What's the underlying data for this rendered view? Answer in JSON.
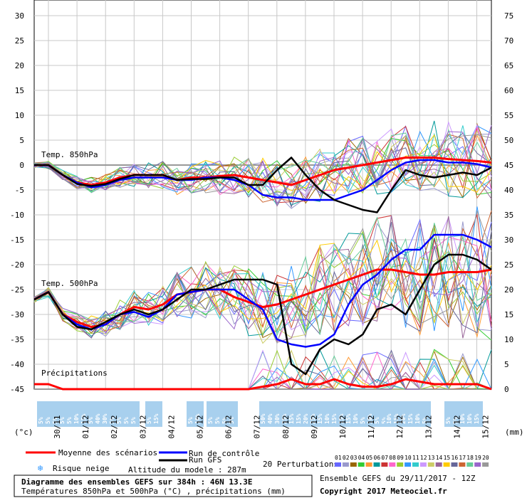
{
  "chart_data": {
    "type": "line",
    "title": "Diagramme des ensembles GEFS sur 384h : 46N 13.3E",
    "subtitle": "Températures 850hPa et 500hPa (°C) , précipitations (mm)",
    "left_axis": {
      "unit_label": "(°c)",
      "ticks": [
        30,
        25,
        20,
        15,
        10,
        5,
        0,
        -5,
        -10,
        -15,
        -20,
        -25,
        -30,
        -35,
        -40,
        -45
      ],
      "range": [
        -45,
        30
      ]
    },
    "right_axis": {
      "unit_label": "(mm)",
      "ticks": [
        75,
        70,
        65,
        60,
        55,
        50,
        45,
        40,
        35,
        30,
        25,
        20,
        15,
        10,
        5,
        0
      ],
      "range": [
        0,
        75
      ]
    },
    "date_ticks": [
      "30/11",
      "01/12",
      "02/12",
      "03/12",
      "04/12",
      "05/12",
      "06/12",
      "07/12",
      "08/12",
      "09/12",
      "10/12",
      "11/12",
      "12/12",
      "13/12",
      "14/12",
      "15/12"
    ],
    "hours": [
      0,
      12,
      24,
      36,
      48,
      60,
      72,
      84,
      96,
      108,
      120,
      132,
      144,
      156,
      168,
      180,
      192,
      204,
      216,
      228,
      240,
      252,
      264,
      276,
      288,
      300,
      312,
      324,
      336,
      348,
      360,
      372,
      384
    ],
    "panel_labels": {
      "t850": "Temp. 850hPa",
      "t500": "Temp. 500hPa",
      "precip": "Précipitations"
    },
    "series": [
      {
        "name": "Moyenne des scénarios",
        "color": "#ff0000",
        "panel": "t850",
        "values": [
          0,
          0,
          -2,
          -3.5,
          -4,
          -3.5,
          -2.5,
          -2,
          -2,
          -2,
          -3,
          -2.5,
          -2.5,
          -2.2,
          -2,
          -2.5,
          -3,
          -3.5,
          -4,
          -3,
          -2,
          -1,
          -0.5,
          0,
          0.5,
          1,
          1.5,
          1.5,
          1.5,
          1.2,
          1,
          0.8,
          0.5
        ]
      },
      {
        "name": "Run de contrôle",
        "color": "#0000ff",
        "panel": "t850",
        "values": [
          0,
          0,
          -2,
          -3.5,
          -4.5,
          -4,
          -3,
          -2.5,
          -2.5,
          -2.5,
          -3,
          -3,
          -2.5,
          -2.5,
          -3,
          -4,
          -6,
          -6.5,
          -6.5,
          -7,
          -7,
          -7,
          -6,
          -5,
          -3,
          -1,
          0.5,
          1,
          1,
          0.5,
          0.5,
          0.2,
          -0.5
        ]
      },
      {
        "name": "Run GFS",
        "color": "#000000",
        "panel": "t850",
        "values": [
          0,
          0,
          -2,
          -3.8,
          -4.2,
          -3.8,
          -2.8,
          -2,
          -2,
          -2,
          -3,
          -2.8,
          -2.8,
          -2.5,
          -2.5,
          -4,
          -4,
          -1,
          1.5,
          -2,
          -5,
          -7,
          -8,
          -9,
          -9.5,
          -5,
          -1,
          -2,
          -2.5,
          -2,
          -1.5,
          -2,
          -0.5
        ]
      },
      {
        "name": "Moyenne des scénarios",
        "color": "#ff0000",
        "panel": "t500",
        "values": [
          -27,
          -25.5,
          -30,
          -31.5,
          -32.5,
          -32,
          -30,
          -28.5,
          -29,
          -28,
          -26,
          -25.5,
          -25,
          -25,
          -26.5,
          -27.5,
          -28.5,
          -28,
          -27,
          -26,
          -25,
          -24,
          -23,
          -22,
          -21,
          -21,
          -21.5,
          -22,
          -22,
          -21.5,
          -21.5,
          -21.5,
          -21
        ]
      },
      {
        "name": "Run de contrôle",
        "color": "#0000ff",
        "panel": "t500",
        "values": [
          -27,
          -25.5,
          -30,
          -32,
          -33,
          -32,
          -30,
          -29.5,
          -30.5,
          -29,
          -26,
          -25.5,
          -25,
          -25,
          -25,
          -27,
          -29,
          -35,
          -36,
          -36.5,
          -36,
          -34,
          -28,
          -24,
          -22,
          -19,
          -17,
          -17,
          -14,
          -14,
          -14,
          -15,
          -16.5
        ]
      },
      {
        "name": "Run GFS",
        "color": "#000000",
        "panel": "t500",
        "values": [
          -27,
          -25.5,
          -30,
          -32.5,
          -33,
          -31.5,
          -30,
          -29,
          -30,
          -29,
          -27,
          -25,
          -25,
          -24,
          -23,
          -23,
          -23,
          -24,
          -40,
          -42,
          -37,
          -35,
          -36,
          -34,
          -29,
          -28,
          -30,
          -25,
          -20,
          -18,
          -18,
          -19,
          -21
        ]
      },
      {
        "name": "Moyenne des scénarios",
        "color": "#ff0000",
        "panel": "precip",
        "values": [
          1,
          1,
          0,
          0,
          0,
          0,
          0,
          0,
          0,
          0,
          0,
          0,
          0,
          0,
          0,
          0,
          0.5,
          1,
          2,
          1,
          1,
          2,
          1,
          0.5,
          0.5,
          1,
          2,
          1.5,
          1,
          1,
          1,
          1,
          0
        ]
      }
    ],
    "legend": {
      "mean": "Moyenne des scénarios",
      "control": "Run de contrôle",
      "gfs": "Run GFS",
      "perturbations": "20 Perturbations",
      "snow_risk": "Risque neige",
      "altitude": "Altitude du modele : 287m"
    },
    "perturbation_numbers": [
      "01",
      "02",
      "03",
      "04",
      "05",
      "06",
      "07",
      "08",
      "09",
      "10",
      "11",
      "12",
      "13",
      "14",
      "15",
      "16",
      "17",
      "18",
      "19",
      "20"
    ],
    "perturbation_colors": [
      "#6666ff",
      "#9999cc",
      "#996600",
      "#33cc33",
      "#ff9933",
      "#009999",
      "#cc3333",
      "#ff66cc",
      "#99cc33",
      "#3399ff",
      "#33cccc",
      "#cc99ff",
      "#cccc66",
      "#996699",
      "#ffcc00",
      "#666699",
      "#cc6633",
      "#66cc99",
      "#9966cc",
      "#999999"
    ],
    "snow_boxes": [
      {
        "labels": [
          "5%",
          "5%",
          "5%",
          "5%",
          "5%",
          "10%",
          "15%",
          "5%",
          "40%",
          "30%",
          "5%",
          "5%",
          "5%",
          "5%"
        ]
      },
      {
        "labels": [
          "5%",
          "15%"
        ]
      },
      {
        "labels": [
          "5%",
          "10%"
        ]
      },
      {
        "labels": [
          "5%",
          "5%",
          "5%",
          "5%"
        ]
      },
      {
        "labels": [
          "50%",
          "40%",
          "30%",
          "25%",
          "15%",
          "15%",
          "20%",
          "25%",
          "15%",
          "10%",
          "15%",
          "15%",
          "15%",
          "10%",
          "5%",
          "10%",
          "5%",
          "5%",
          "5%",
          "5%"
        ]
      },
      {
        "labels": [
          "10%",
          "15%",
          "20%",
          "15%",
          "10%",
          "5%"
        ]
      },
      {
        "labels": [
          "5%",
          "5%",
          "10%",
          "10%",
          "15%"
        ]
      }
    ],
    "run_info": "Ensemble GEFS du 29/11/2017 - 12Z",
    "copyright": "Copyright 2017 Meteociel.fr",
    "zero_line_color": "#999999",
    "grid": true
  }
}
